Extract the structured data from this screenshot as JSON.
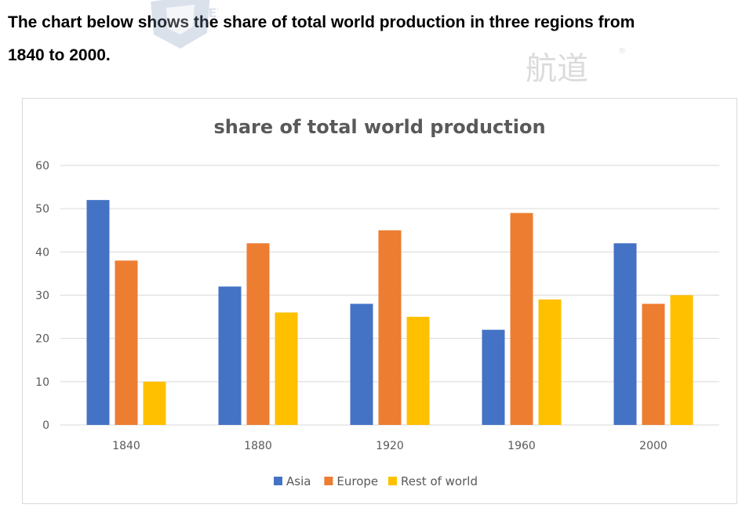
{
  "prompt": {
    "line1": "The chart below shows the share of total world production in three regions from",
    "line2": "1840 to 2000."
  },
  "watermark": {
    "logo_text": "NEW",
    "brand_text": "航道",
    "registered": "®"
  },
  "colors": {
    "asia": "#4472C4",
    "europe": "#ED7D31",
    "rest": "#FFC000",
    "grid": "#D9D9D9",
    "text": "#595959"
  },
  "chart_data": {
    "type": "bar",
    "title": "share of total world production",
    "categories": [
      "1840",
      "1880",
      "1920",
      "1960",
      "2000"
    ],
    "series": [
      {
        "name": "Asia",
        "values": [
          52,
          32,
          28,
          22,
          42
        ]
      },
      {
        "name": "Europe",
        "values": [
          38,
          42,
          45,
          49,
          28
        ]
      },
      {
        "name": "Rest of world",
        "values": [
          10,
          26,
          25,
          29,
          30
        ]
      }
    ],
    "ylim": [
      0,
      60
    ],
    "yticks": [
      0,
      10,
      20,
      30,
      40,
      50,
      60
    ],
    "grid": true,
    "legend": "bottom"
  }
}
